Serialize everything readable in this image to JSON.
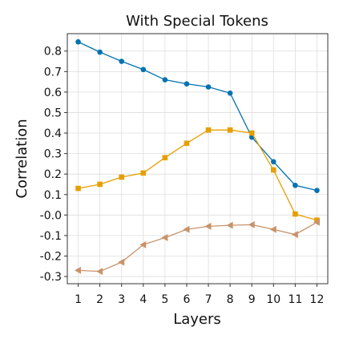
{
  "chart_data": {
    "type": "line",
    "title": "With Special Tokens",
    "xlabel": "Layers",
    "ylabel": "Correlation",
    "x": [
      1,
      2,
      3,
      4,
      5,
      6,
      7,
      8,
      9,
      10,
      11,
      12
    ],
    "x_ticks": [
      "1",
      "2",
      "3",
      "4",
      "5",
      "6",
      "7",
      "8",
      "9",
      "10",
      "11",
      "12"
    ],
    "y_ticks": [
      {
        "value": 0.8,
        "label": "0.8"
      },
      {
        "value": 0.7,
        "label": "0.7"
      },
      {
        "value": 0.6,
        "label": "0.6"
      },
      {
        "value": 0.5,
        "label": "0.5"
      },
      {
        "value": 0.4,
        "label": "0.4"
      },
      {
        "value": 0.3,
        "label": "0.3"
      },
      {
        "value": 0.2,
        "label": "0.2"
      },
      {
        "value": 0.1,
        "label": "0.1"
      },
      {
        "value": 0.0,
        "label": "-0.0"
      },
      {
        "value": -0.1,
        "label": "-0.1"
      },
      {
        "value": -0.2,
        "label": "-0.2"
      },
      {
        "value": -0.3,
        "label": "-0.3"
      }
    ],
    "xlim": [
      0.5,
      12.5
    ],
    "ylim": [
      -0.335,
      0.885
    ],
    "grid": true,
    "series": [
      {
        "color": "#0072b2",
        "marker": "circle",
        "values": [
          0.845,
          0.795,
          0.75,
          0.71,
          0.66,
          0.64,
          0.625,
          0.595,
          0.38,
          0.26,
          0.145,
          0.12
        ]
      },
      {
        "color": "#e69f00",
        "marker": "square",
        "values": [
          0.13,
          0.15,
          0.185,
          0.205,
          0.28,
          0.35,
          0.415,
          0.415,
          0.4,
          0.22,
          0.005,
          -0.025
        ]
      },
      {
        "color": "#c8936a",
        "marker": "triangle-left",
        "values": [
          -0.27,
          -0.275,
          -0.23,
          -0.145,
          -0.11,
          -0.07,
          -0.055,
          -0.05,
          -0.047,
          -0.07,
          -0.095,
          -0.035
        ]
      }
    ]
  }
}
